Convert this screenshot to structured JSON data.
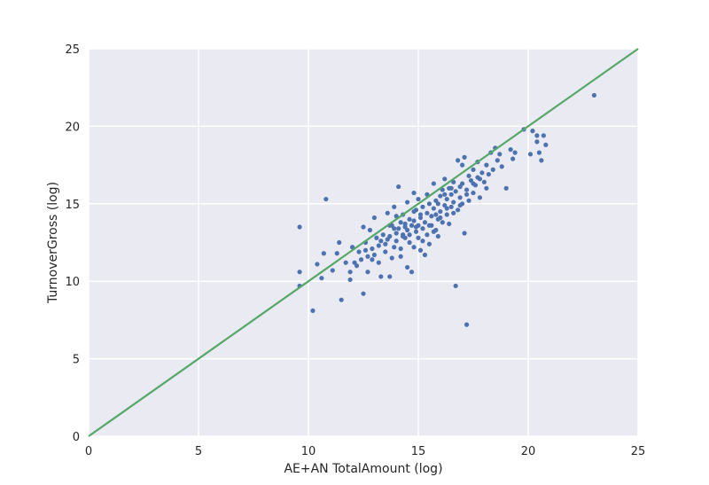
{
  "chart_data": {
    "type": "scatter",
    "title": "",
    "xlabel": "AE+AN TotalAmount (log)",
    "ylabel": "TurnoverGross (log)",
    "xlim": [
      0,
      25
    ],
    "ylim": [
      0,
      25
    ],
    "xticks": [
      0,
      5,
      10,
      15,
      20,
      25
    ],
    "yticks": [
      0,
      5,
      10,
      15,
      20,
      25
    ],
    "grid": true,
    "colors": {
      "background": "#eaeaf2",
      "grid": "#ffffff",
      "points": "#4c72b0",
      "reference_line": "#55a868"
    },
    "reference_line": {
      "name": "y = x",
      "x": [
        0,
        25
      ],
      "y": [
        0,
        25
      ]
    },
    "series": [
      {
        "name": "observations",
        "points": [
          [
            9.6,
            13.5
          ],
          [
            9.6,
            10.6
          ],
          [
            9.6,
            9.7
          ],
          [
            10.2,
            8.1
          ],
          [
            10.4,
            11.1
          ],
          [
            10.6,
            10.2
          ],
          [
            10.7,
            11.8
          ],
          [
            10.8,
            15.3
          ],
          [
            11.1,
            10.7
          ],
          [
            11.3,
            11.8
          ],
          [
            11.4,
            12.5
          ],
          [
            11.5,
            8.8
          ],
          [
            11.7,
            11.2
          ],
          [
            11.9,
            10.6
          ],
          [
            11.9,
            10.1
          ],
          [
            12.0,
            12.2
          ],
          [
            12.2,
            11.0
          ],
          [
            12.3,
            11.9
          ],
          [
            12.4,
            11.4
          ],
          [
            12.5,
            9.2
          ],
          [
            12.5,
            13.5
          ],
          [
            12.6,
            12.0
          ],
          [
            12.7,
            11.6
          ],
          [
            12.7,
            10.6
          ],
          [
            12.8,
            13.3
          ],
          [
            12.9,
            12.1
          ],
          [
            13.0,
            11.7
          ],
          [
            13.0,
            14.1
          ],
          [
            13.1,
            12.8
          ],
          [
            13.2,
            11.2
          ],
          [
            13.3,
            10.3
          ],
          [
            13.4,
            13.0
          ],
          [
            13.5,
            11.9
          ],
          [
            13.5,
            12.4
          ],
          [
            13.6,
            14.4
          ],
          [
            13.7,
            12.9
          ],
          [
            13.7,
            10.3
          ],
          [
            13.8,
            13.6
          ],
          [
            13.8,
            11.5
          ],
          [
            13.9,
            12.2
          ],
          [
            13.9,
            14.8
          ],
          [
            14.0,
            13.1
          ],
          [
            14.0,
            12.6
          ],
          [
            14.1,
            16.1
          ],
          [
            14.1,
            13.4
          ],
          [
            14.2,
            12.1
          ],
          [
            14.2,
            11.6
          ],
          [
            14.3,
            14.3
          ],
          [
            14.3,
            13.0
          ],
          [
            14.4,
            13.7
          ],
          [
            14.4,
            12.8
          ],
          [
            14.5,
            10.9
          ],
          [
            14.5,
            15.1
          ],
          [
            14.5,
            13.3
          ],
          [
            14.6,
            14.0
          ],
          [
            14.6,
            12.5
          ],
          [
            14.7,
            10.6
          ],
          [
            14.7,
            13.6
          ],
          [
            14.8,
            15.7
          ],
          [
            14.8,
            12.2
          ],
          [
            14.8,
            13.9
          ],
          [
            14.9,
            13.2
          ],
          [
            14.9,
            14.6
          ],
          [
            15.0,
            12.8
          ],
          [
            15.0,
            15.3
          ],
          [
            15.0,
            13.6
          ],
          [
            15.1,
            14.1
          ],
          [
            15.1,
            12.0
          ],
          [
            15.2,
            13.4
          ],
          [
            15.2,
            14.8
          ],
          [
            15.3,
            13.8
          ],
          [
            15.3,
            11.7
          ],
          [
            15.4,
            14.4
          ],
          [
            15.4,
            13.0
          ],
          [
            15.5,
            15.0
          ],
          [
            15.5,
            12.4
          ],
          [
            15.6,
            14.2
          ],
          [
            15.6,
            13.6
          ],
          [
            15.7,
            16.3
          ],
          [
            15.7,
            14.7
          ],
          [
            15.8,
            13.3
          ],
          [
            15.8,
            15.2
          ],
          [
            15.9,
            14.0
          ],
          [
            15.9,
            12.9
          ],
          [
            16.0,
            15.5
          ],
          [
            16.0,
            14.5
          ],
          [
            16.1,
            13.8
          ],
          [
            16.1,
            15.9
          ],
          [
            16.2,
            14.9
          ],
          [
            16.2,
            16.6
          ],
          [
            16.3,
            14.3
          ],
          [
            16.3,
            15.3
          ],
          [
            16.4,
            16.0
          ],
          [
            16.4,
            13.7
          ],
          [
            16.5,
            15.6
          ],
          [
            16.5,
            14.8
          ],
          [
            16.6,
            16.4
          ],
          [
            16.6,
            15.1
          ],
          [
            16.7,
            9.7
          ],
          [
            16.7,
            15.8
          ],
          [
            16.8,
            17.8
          ],
          [
            16.8,
            14.6
          ],
          [
            16.9,
            16.1
          ],
          [
            16.9,
            15.4
          ],
          [
            17.0,
            17.5
          ],
          [
            17.0,
            16.3
          ],
          [
            17.1,
            13.1
          ],
          [
            17.1,
            18.0
          ],
          [
            17.2,
            7.2
          ],
          [
            17.2,
            15.9
          ],
          [
            17.3,
            16.8
          ],
          [
            17.3,
            15.2
          ],
          [
            17.4,
            16.5
          ],
          [
            17.5,
            17.2
          ],
          [
            17.5,
            15.7
          ],
          [
            17.6,
            16.2
          ],
          [
            17.7,
            17.7
          ],
          [
            17.7,
            16.7
          ],
          [
            17.8,
            15.4
          ],
          [
            17.9,
            17.0
          ],
          [
            18.0,
            16.4
          ],
          [
            18.1,
            17.5
          ],
          [
            18.1,
            16.0
          ],
          [
            18.2,
            16.9
          ],
          [
            18.3,
            18.3
          ],
          [
            18.4,
            17.2
          ],
          [
            18.5,
            18.6
          ],
          [
            18.6,
            17.8
          ],
          [
            18.7,
            18.2
          ],
          [
            18.8,
            17.4
          ],
          [
            19.0,
            16.0
          ],
          [
            19.2,
            18.5
          ],
          [
            19.3,
            17.9
          ],
          [
            19.4,
            18.3
          ],
          [
            19.8,
            19.8
          ],
          [
            20.1,
            18.2
          ],
          [
            20.2,
            19.7
          ],
          [
            20.4,
            19.0
          ],
          [
            20.5,
            18.3
          ],
          [
            20.6,
            17.8
          ],
          [
            20.7,
            19.4
          ],
          [
            20.8,
            18.8
          ],
          [
            20.4,
            19.4
          ],
          [
            23.0,
            22.0
          ],
          [
            12.1,
            11.2
          ],
          [
            12.9,
            11.4
          ],
          [
            13.2,
            12.3
          ],
          [
            13.6,
            12.7
          ],
          [
            13.9,
            13.4
          ],
          [
            14.3,
            12.9
          ],
          [
            14.6,
            13.0
          ],
          [
            14.9,
            13.5
          ],
          [
            15.2,
            12.6
          ],
          [
            15.5,
            13.6
          ],
          [
            15.7,
            13.2
          ],
          [
            16.0,
            14.1
          ],
          [
            16.3,
            14.7
          ],
          [
            16.6,
            14.4
          ],
          [
            16.9,
            14.9
          ],
          [
            17.2,
            15.6
          ],
          [
            17.5,
            16.3
          ],
          [
            17.8,
            16.6
          ],
          [
            15.1,
            14.3
          ],
          [
            14.4,
            13.5
          ],
          [
            13.7,
            13.6
          ],
          [
            15.9,
            15.0
          ],
          [
            16.2,
            15.6
          ],
          [
            14.8,
            14.5
          ],
          [
            15.4,
            15.6
          ],
          [
            14.0,
            14.2
          ],
          [
            13.3,
            12.6
          ],
          [
            16.5,
            16.0
          ],
          [
            17.0,
            15.0
          ],
          [
            15.8,
            14.3
          ],
          [
            14.2,
            13.8
          ],
          [
            12.6,
            12.5
          ]
        ]
      }
    ]
  }
}
